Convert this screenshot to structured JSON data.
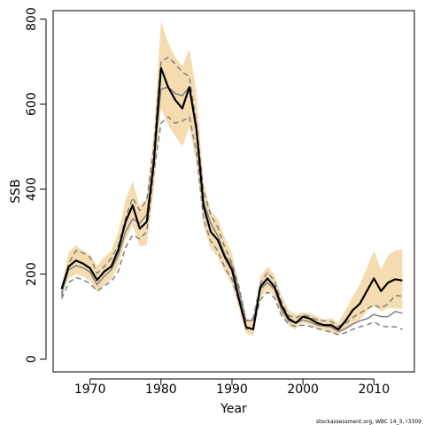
{
  "footer_note": "stockassessment.org, WBC 14_3, r3309",
  "chart_data": {
    "type": "line",
    "xlabel": "Year",
    "ylabel": "SSB",
    "xlim": [
      1964.8,
      2015.7
    ],
    "ylim": [
      -30,
      820
    ],
    "x_ticks": [
      "1970",
      "1980",
      "1990",
      "2000",
      "2010"
    ],
    "x_tick_values": [
      1970,
      1980,
      1990,
      2000,
      2010
    ],
    "y_ticks": [
      "0",
      "200",
      "400",
      "600",
      "800"
    ],
    "y_tick_values": [
      0,
      200,
      400,
      600,
      800
    ],
    "grid": false,
    "colors": {
      "band": "#f5dcb0",
      "estimate": "#000000",
      "previous": "#808080"
    },
    "x": [
      1966,
      1967,
      1968,
      1969,
      1970,
      1971,
      1972,
      1973,
      1974,
      1975,
      1976,
      1977,
      1978,
      1979,
      1980,
      1981,
      1982,
      1983,
      1984,
      1985,
      1986,
      1987,
      1988,
      1989,
      1990,
      1991,
      1992,
      1993,
      1994,
      1995,
      1996,
      1997,
      1998,
      1999,
      2000,
      2001,
      2002,
      2003,
      2004,
      2005,
      2006,
      2007,
      2008,
      2009,
      2010,
      2011,
      2012,
      2013,
      2014
    ],
    "estimate": [
      165,
      218,
      232,
      225,
      214,
      186,
      206,
      218,
      258,
      323,
      362,
      307,
      323,
      465,
      685,
      640,
      610,
      590,
      640,
      540,
      360,
      300,
      280,
      240,
      210,
      140,
      75,
      70,
      170,
      190,
      170,
      125,
      95,
      85,
      100,
      95,
      85,
      80,
      80,
      70,
      90,
      115,
      130,
      160,
      190,
      160,
      180,
      188,
      185
    ],
    "band_upper": [
      175,
      252,
      268,
      255,
      245,
      220,
      240,
      255,
      300,
      375,
      420,
      360,
      380,
      535,
      795,
      745,
      710,
      690,
      730,
      630,
      415,
      350,
      330,
      285,
      250,
      170,
      95,
      90,
      195,
      218,
      198,
      150,
      115,
      105,
      110,
      108,
      100,
      92,
      97,
      85,
      115,
      148,
      175,
      215,
      255,
      210,
      245,
      255,
      258
    ],
    "band_lower": [
      155,
      190,
      200,
      195,
      185,
      158,
      175,
      188,
      220,
      280,
      315,
      265,
      270,
      400,
      590,
      550,
      525,
      500,
      545,
      460,
      315,
      260,
      240,
      205,
      175,
      118,
      60,
      55,
      145,
      165,
      145,
      104,
      78,
      70,
      86,
      80,
      72,
      68,
      62,
      58,
      68,
      82,
      92,
      112,
      125,
      112,
      120,
      120,
      118
    ],
    "previous_estimate": [
      155,
      210,
      220,
      215,
      205,
      175,
      195,
      210,
      245,
      300,
      330,
      320,
      340,
      470,
      635,
      640,
      625,
      620,
      640,
      540,
      370,
      320,
      290,
      245,
      220,
      160,
      90,
      92,
      165,
      180,
      165,
      115,
      90,
      85,
      92,
      88,
      80,
      78,
      75,
      65,
      72,
      82,
      90,
      95,
      105,
      100,
      100,
      112,
      108
    ],
    "previous_upper": [
      148,
      225,
      255,
      250,
      240,
      202,
      218,
      238,
      268,
      332,
      380,
      350,
      375,
      500,
      700,
      710,
      695,
      675,
      665,
      555,
      395,
      340,
      310,
      262,
      226,
      170,
      90,
      97,
      178,
      204,
      184,
      133,
      102,
      97,
      104,
      100,
      92,
      90,
      88,
      77,
      84,
      98,
      108,
      118,
      128,
      120,
      130,
      150,
      148
    ],
    "previous_lower": [
      142,
      180,
      192,
      187,
      178,
      160,
      172,
      183,
      207,
      263,
      292,
      283,
      300,
      440,
      555,
      570,
      555,
      560,
      570,
      485,
      330,
      278,
      255,
      215,
      188,
      135,
      70,
      77,
      140,
      158,
      144,
      102,
      82,
      77,
      80,
      77,
      72,
      67,
      64,
      57,
      62,
      70,
      76,
      80,
      88,
      78,
      76,
      76,
      70
    ]
  }
}
